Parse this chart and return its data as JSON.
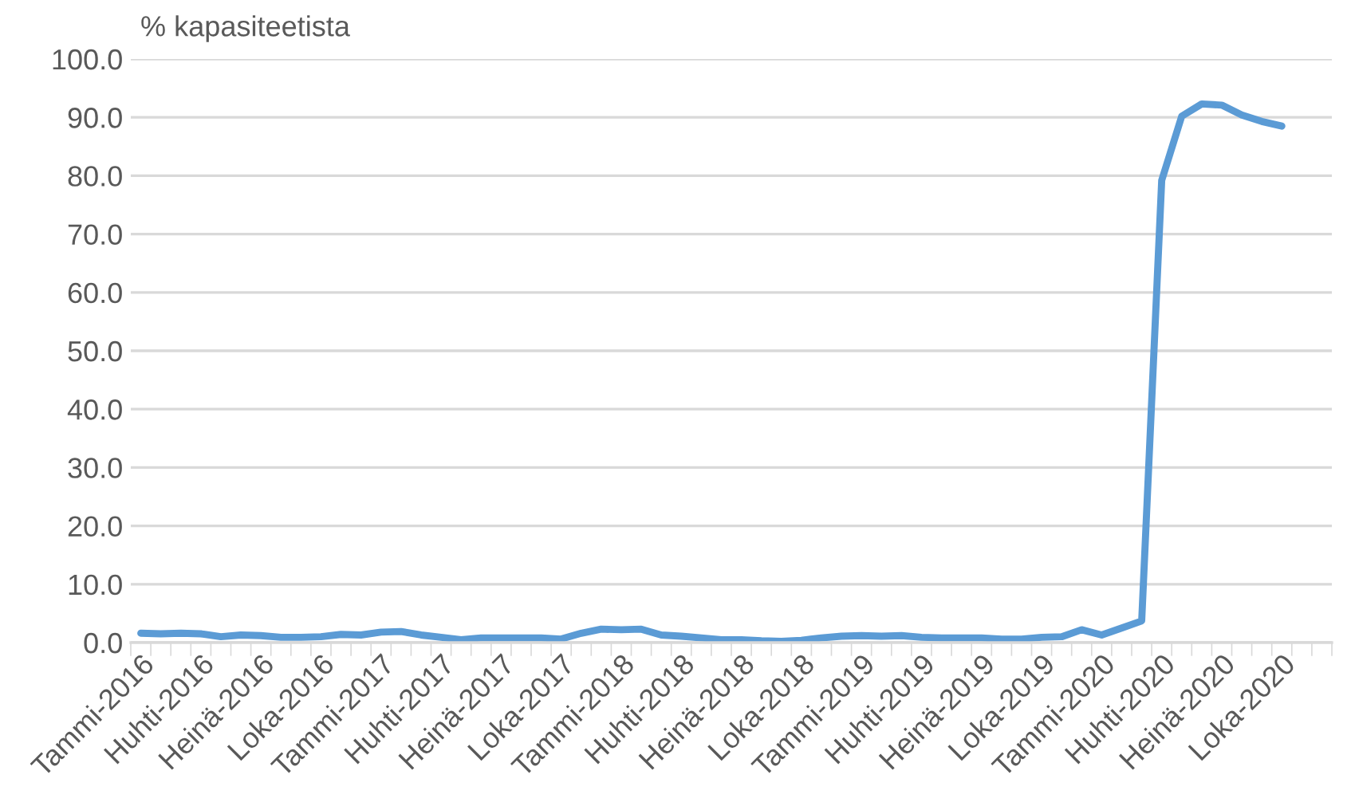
{
  "chart_data": {
    "type": "line",
    "ylabel": "% kapasiteetista",
    "categories": [
      "Tammi-2016",
      null,
      null,
      "Huhti-2016",
      null,
      null,
      "Heinä-2016",
      null,
      null,
      "Loka-2016",
      null,
      null,
      "Tammi-2017",
      null,
      null,
      "Huhti-2017",
      null,
      null,
      "Heinä-2017",
      null,
      null,
      "Loka-2017",
      null,
      null,
      "Tammi-2018",
      null,
      null,
      "Huhti-2018",
      null,
      null,
      "Heinä-2018",
      null,
      null,
      "Loka-2018",
      null,
      null,
      "Tammi-2019",
      null,
      null,
      "Huhti-2019",
      null,
      null,
      "Heinä-2019",
      null,
      null,
      "Loka-2019",
      null,
      null,
      "Tammi-2020",
      null,
      null,
      "Huhti-2020",
      null,
      null,
      "Heinä-2020",
      null,
      null,
      "Loka-2020",
      null,
      null
    ],
    "series": [
      {
        "color": "#5b9bd5",
        "values": [
          1.6,
          1.5,
          1.6,
          1.5,
          1.0,
          1.3,
          1.2,
          0.9,
          0.9,
          1.0,
          1.4,
          1.3,
          1.8,
          1.9,
          1.3,
          0.9,
          0.5,
          0.8,
          0.8,
          0.8,
          0.8,
          0.6,
          1.6,
          2.3,
          2.2,
          2.3,
          1.3,
          1.1,
          0.8,
          0.5,
          0.5,
          0.3,
          0.2,
          0.4,
          0.8,
          1.1,
          1.2,
          1.1,
          1.2,
          0.9,
          0.8,
          0.8,
          0.8,
          0.6,
          0.6,
          0.9,
          1.0,
          2.2,
          1.3,
          2.5,
          3.7,
          79.2,
          90.2,
          92.3,
          92.1,
          90.4,
          89.3,
          88.5,
          null,
          null
        ]
      }
    ],
    "ylim": [
      0,
      100
    ],
    "yticks": [
      {
        "value": 0,
        "label": "0.0"
      },
      {
        "value": 10,
        "label": "10.0"
      },
      {
        "value": 20,
        "label": "20.0"
      },
      {
        "value": 30,
        "label": "30.0"
      },
      {
        "value": 40,
        "label": "40.0"
      },
      {
        "value": 50,
        "label": "50.0"
      },
      {
        "value": 60,
        "label": "60.0"
      },
      {
        "value": 70,
        "label": "70.0"
      },
      {
        "value": 80,
        "label": "80.0"
      },
      {
        "value": 90,
        "label": "90.0"
      },
      {
        "value": 100,
        "label": "100.0"
      }
    ],
    "grid": "y",
    "legend": false,
    "marker": "none",
    "line_style": "solid"
  }
}
